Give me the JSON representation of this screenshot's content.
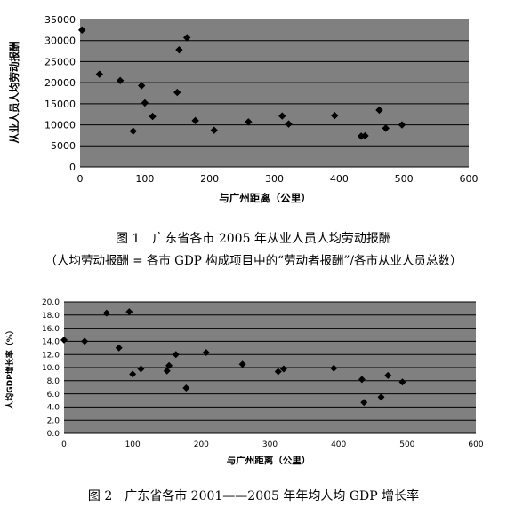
{
  "chart_data": [
    {
      "type": "scatter",
      "xlabel": "与广州距离（公里）",
      "ylabel": "从业人员人均劳动报酬",
      "xlim": [
        0,
        600
      ],
      "ylim": [
        0,
        35000
      ],
      "xticks": [
        "0",
        "100",
        "200",
        "300",
        "400",
        "500",
        "600"
      ],
      "yticks": [
        "0",
        "5000",
        "10000",
        "15000",
        "20000",
        "25000",
        "30000",
        "35000"
      ],
      "grid": true,
      "points": [
        {
          "x": 3,
          "y": 32500
        },
        {
          "x": 30,
          "y": 22000
        },
        {
          "x": 62,
          "y": 20500
        },
        {
          "x": 82,
          "y": 8500
        },
        {
          "x": 95,
          "y": 19300
        },
        {
          "x": 100,
          "y": 15200
        },
        {
          "x": 112,
          "y": 12000
        },
        {
          "x": 150,
          "y": 17700
        },
        {
          "x": 153,
          "y": 27800
        },
        {
          "x": 165,
          "y": 30700
        },
        {
          "x": 178,
          "y": 11000
        },
        {
          "x": 207,
          "y": 8700
        },
        {
          "x": 260,
          "y": 10700
        },
        {
          "x": 312,
          "y": 12100
        },
        {
          "x": 322,
          "y": 10200
        },
        {
          "x": 393,
          "y": 12200
        },
        {
          "x": 434,
          "y": 7300
        },
        {
          "x": 440,
          "y": 7400
        },
        {
          "x": 462,
          "y": 13500
        },
        {
          "x": 472,
          "y": 9200
        },
        {
          "x": 497,
          "y": 10000
        }
      ],
      "caption": "图 1　广东省各市 2005 年从业人员人均劳动报酬",
      "caption_note": "（人均劳动报酬 = 各市 GDP 构成项目中的“劳动者报酬”/各市从业人员总数）"
    },
    {
      "type": "scatter",
      "xlabel": "与广州距离（公里）",
      "ylabel": "人均GDP增长率（%）",
      "xlim": [
        0,
        600
      ],
      "ylim": [
        0,
        20
      ],
      "xticks": [
        "0",
        "100",
        "200",
        "300",
        "400",
        "500",
        "600"
      ],
      "yticks": [
        "0.0",
        "2.0",
        "4.0",
        "6.0",
        "8.0",
        "10.0",
        "12.0",
        "14.0",
        "16.0",
        "18.0",
        "20.0"
      ],
      "grid": true,
      "points": [
        {
          "x": 0,
          "y": 14.2
        },
        {
          "x": 30,
          "y": 14.0
        },
        {
          "x": 62,
          "y": 18.3
        },
        {
          "x": 80,
          "y": 13.0
        },
        {
          "x": 95,
          "y": 18.5
        },
        {
          "x": 100,
          "y": 9.0
        },
        {
          "x": 112,
          "y": 9.8
        },
        {
          "x": 150,
          "y": 9.5
        },
        {
          "x": 153,
          "y": 10.3
        },
        {
          "x": 163,
          "y": 12.0
        },
        {
          "x": 178,
          "y": 6.9
        },
        {
          "x": 207,
          "y": 12.3
        },
        {
          "x": 260,
          "y": 10.5
        },
        {
          "x": 312,
          "y": 9.4
        },
        {
          "x": 320,
          "y": 9.8
        },
        {
          "x": 393,
          "y": 9.9
        },
        {
          "x": 434,
          "y": 8.2
        },
        {
          "x": 437,
          "y": 4.7
        },
        {
          "x": 462,
          "y": 5.5
        },
        {
          "x": 472,
          "y": 8.8
        },
        {
          "x": 493,
          "y": 7.8
        }
      ],
      "caption": "图 2　广东省各市 2001——2005 年年均人均 GDP 增长率"
    }
  ]
}
